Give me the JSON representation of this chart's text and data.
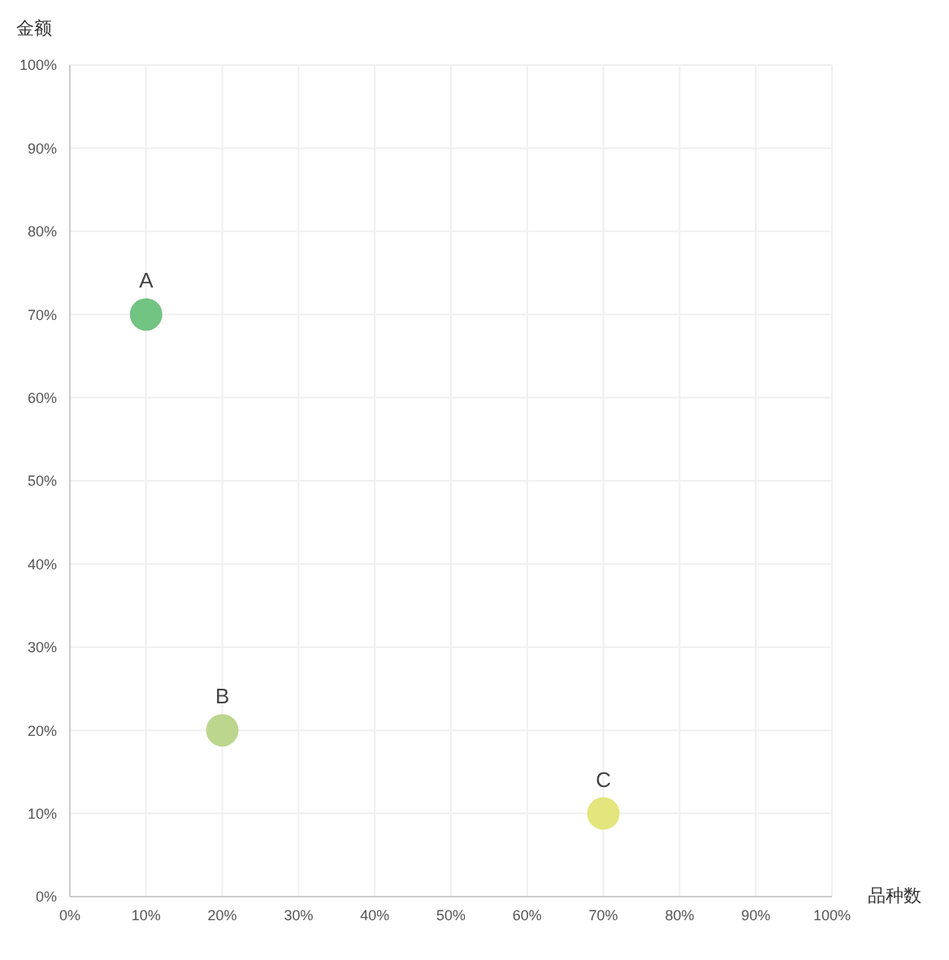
{
  "chart_data": {
    "type": "scatter",
    "xlabel": "品种数",
    "ylabel": "金额",
    "series": [
      {
        "name": "A",
        "color": "#72c483",
        "x": [
          10
        ],
        "values": [
          70
        ]
      },
      {
        "name": "B",
        "color": "#bdd68e",
        "x": [
          20
        ],
        "values": [
          20
        ]
      },
      {
        "name": "C",
        "color": "#e3e67c",
        "x": [
          70
        ],
        "values": [
          10
        ]
      }
    ],
    "xlim": [
      0,
      100
    ],
    "ylim": [
      0,
      100
    ],
    "xticks": [
      {
        "value": 0,
        "label": "0%"
      },
      {
        "value": 10,
        "label": "10%"
      },
      {
        "value": 20,
        "label": "20%"
      },
      {
        "value": 30,
        "label": "30%"
      },
      {
        "value": 40,
        "label": "40%"
      },
      {
        "value": 50,
        "label": "50%"
      },
      {
        "value": 60,
        "label": "60%"
      },
      {
        "value": 70,
        "label": "70%"
      },
      {
        "value": 80,
        "label": "80%"
      },
      {
        "value": 90,
        "label": "90%"
      },
      {
        "value": 100,
        "label": "100%"
      }
    ],
    "yticks": [
      {
        "value": 0,
        "label": "0%"
      },
      {
        "value": 10,
        "label": "10%"
      },
      {
        "value": 20,
        "label": "20%"
      },
      {
        "value": 30,
        "label": "30%"
      },
      {
        "value": 40,
        "label": "40%"
      },
      {
        "value": 50,
        "label": "50%"
      },
      {
        "value": 60,
        "label": "60%"
      },
      {
        "value": 70,
        "label": "70%"
      },
      {
        "value": 80,
        "label": "80%"
      },
      {
        "value": 90,
        "label": "90%"
      },
      {
        "value": 100,
        "label": "100%"
      }
    ],
    "grid": true,
    "marker": "circle",
    "legend": false
  }
}
